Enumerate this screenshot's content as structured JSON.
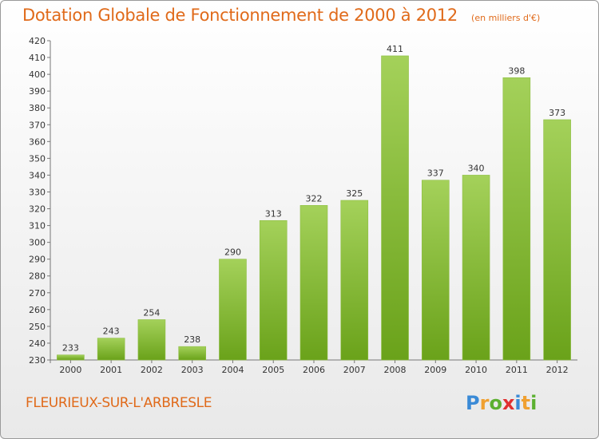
{
  "chart_data": {
    "type": "bar",
    "title": "Dotation Globale de Fonctionnement de 2000 à 2012",
    "unit_note": "(en milliers d'€)",
    "categories": [
      "2000",
      "2001",
      "2002",
      "2003",
      "2004",
      "2005",
      "2006",
      "2007",
      "2008",
      "2009",
      "2010",
      "2011",
      "2012"
    ],
    "values": [
      233,
      243,
      254,
      238,
      290,
      313,
      322,
      325,
      411,
      337,
      340,
      398,
      373
    ],
    "ylim": [
      230,
      420
    ],
    "ytick_step": 10,
    "grid": false,
    "bar_colors": [
      "#a4d15a",
      "#6aa21a"
    ]
  },
  "commune": "FLEURIEUX-SUR-L'ARBRESLE",
  "logo": {
    "letters": [
      "P",
      "r",
      "o",
      "x",
      "i",
      "t",
      "i"
    ],
    "colors": [
      "#3a8ad6",
      "#f0a030",
      "#5cb030",
      "#e03030",
      "#3a8ad6",
      "#f0a030",
      "#5cb030"
    ]
  }
}
